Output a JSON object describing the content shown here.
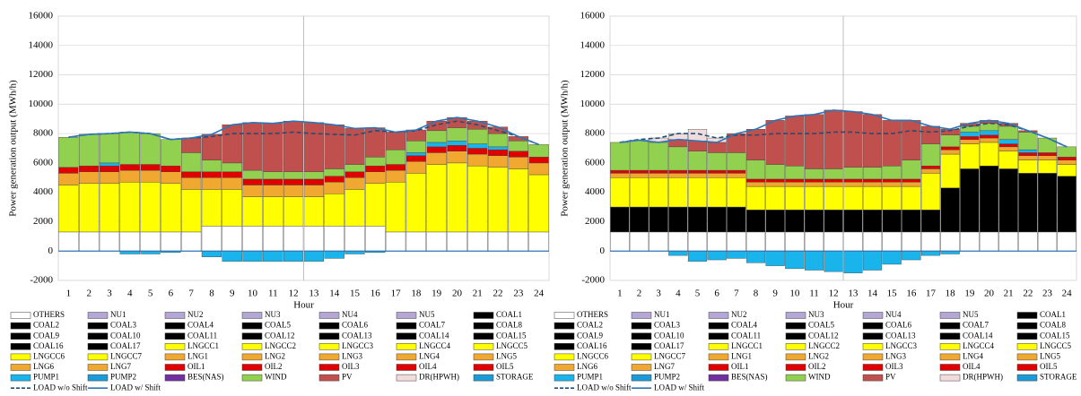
{
  "chart_data": [
    {
      "type": "bar",
      "ylabel": "Power generation output (MWh/h)",
      "xlabel": "Hour",
      "categories": [
        1,
        2,
        3,
        4,
        5,
        6,
        7,
        8,
        9,
        10,
        11,
        12,
        13,
        14,
        15,
        16,
        17,
        18,
        19,
        20,
        21,
        22,
        23,
        24
      ],
      "ylim": [
        -2000,
        16000
      ],
      "yticks": [
        -2000,
        0,
        2000,
        4000,
        6000,
        8000,
        10000,
        12000,
        14000,
        16000
      ],
      "series": [
        {
          "name": "OTHERS",
          "values": [
            1300,
            1300,
            1300,
            1300,
            1300,
            1300,
            1300,
            1700,
            1700,
            1700,
            1700,
            1700,
            1700,
            1700,
            1700,
            1700,
            1300,
            1300,
            1300,
            1300,
            1300,
            1300,
            1300,
            1300
          ]
        },
        {
          "name": "LNGCC1",
          "values": [
            3200,
            3300,
            3300,
            3400,
            3400,
            3300,
            2900,
            2500,
            2500,
            2000,
            2000,
            2000,
            2000,
            2200,
            2500,
            2900,
            3400,
            4000,
            4600,
            4700,
            4500,
            4400,
            4300,
            3900
          ]
        },
        {
          "name": "LNG1",
          "values": [
            800,
            800,
            800,
            800,
            800,
            800,
            800,
            800,
            800,
            800,
            800,
            800,
            800,
            800,
            800,
            800,
            800,
            800,
            800,
            800,
            800,
            800,
            800,
            800
          ]
        },
        {
          "name": "OIL1",
          "values": [
            400,
            400,
            400,
            400,
            400,
            400,
            400,
            400,
            400,
            400,
            400,
            400,
            400,
            400,
            400,
            400,
            400,
            400,
            400,
            400,
            400,
            400,
            400,
            400
          ]
        },
        {
          "name": "PUMP1",
          "values": [
            0,
            0,
            200,
            -200,
            -200,
            -100,
            0,
            -400,
            -700,
            -700,
            -700,
            -700,
            -700,
            -500,
            -200,
            -100,
            0,
            200,
            300,
            300,
            300,
            200,
            0,
            0
          ]
        },
        {
          "name": "WIND",
          "values": [
            2050,
            2150,
            2000,
            2200,
            2100,
            1800,
            1300,
            800,
            600,
            600,
            500,
            500,
            500,
            500,
            500,
            600,
            1000,
            800,
            800,
            900,
            1000,
            900,
            700,
            850
          ]
        },
        {
          "name": "PV",
          "values": [
            0,
            0,
            0,
            0,
            0,
            0,
            1000,
            1750,
            2600,
            3250,
            3300,
            3450,
            3350,
            3000,
            2450,
            2000,
            1200,
            750,
            650,
            700,
            550,
            450,
            300,
            0
          ]
        }
      ],
      "lines": [
        {
          "name": "LOAD w/o Shift",
          "values": [
            7750,
            7950,
            8000,
            8100,
            8000,
            7600,
            7700,
            7800,
            8000,
            8000,
            8000,
            8100,
            8000,
            7950,
            7900,
            8200,
            8100,
            8200,
            8600,
            8850,
            8600,
            8200,
            7800,
            7250
          ]
        },
        {
          "name": "LOAD w/ Shift",
          "values": [
            7750,
            7950,
            8000,
            8100,
            8000,
            7600,
            7700,
            7950,
            8600,
            8750,
            8700,
            8850,
            8750,
            8600,
            8350,
            8400,
            8100,
            8250,
            8850,
            9100,
            8850,
            8450,
            7800,
            7250
          ]
        }
      ],
      "legend": [
        {
          "name": "OTHERS",
          "color": "#ffffff"
        },
        {
          "name": "NU1",
          "color": "#b4a7d6"
        },
        {
          "name": "NU2",
          "color": "#b4a7d6"
        },
        {
          "name": "NU3",
          "color": "#b4a7d6"
        },
        {
          "name": "NU4",
          "color": "#b4a7d6"
        },
        {
          "name": "NU5",
          "color": "#b4a7d6"
        },
        {
          "name": "COAL1",
          "color": "#000000"
        },
        {
          "name": "COAL2",
          "color": "#000000"
        },
        {
          "name": "COAL3",
          "color": "#000000"
        },
        {
          "name": "COAL4",
          "color": "#000000"
        },
        {
          "name": "COAL5",
          "color": "#000000"
        },
        {
          "name": "COAL6",
          "color": "#000000"
        },
        {
          "name": "COAL7",
          "color": "#000000"
        },
        {
          "name": "COAL8",
          "color": "#000000"
        },
        {
          "name": "COAL9",
          "color": "#000000"
        },
        {
          "name": "COAL10",
          "color": "#000000"
        },
        {
          "name": "COAL11",
          "color": "#000000"
        },
        {
          "name": "COAL12",
          "color": "#000000"
        },
        {
          "name": "COAL13",
          "color": "#000000"
        },
        {
          "name": "COAL14",
          "color": "#000000"
        },
        {
          "name": "COAL15",
          "color": "#000000"
        },
        {
          "name": "COAL16",
          "color": "#000000"
        },
        {
          "name": "COAL17",
          "color": "#000000"
        },
        {
          "name": "LNGCC1",
          "color": "#ffff00"
        },
        {
          "name": "LNGCC2",
          "color": "#ffff00"
        },
        {
          "name": "LNGCC3",
          "color": "#ffff00"
        },
        {
          "name": "LNGCC4",
          "color": "#ffff00"
        },
        {
          "name": "LNGCC5",
          "color": "#ffff00"
        },
        {
          "name": "LNGCC6",
          "color": "#ffff00"
        },
        {
          "name": "LNGCC7",
          "color": "#ffff00"
        },
        {
          "name": "LNG1",
          "color": "#f0a830"
        },
        {
          "name": "LNG2",
          "color": "#f0a830"
        },
        {
          "name": "LNG3",
          "color": "#f0a830"
        },
        {
          "name": "LNG4",
          "color": "#f0a830"
        },
        {
          "name": "LNG5",
          "color": "#f0a830"
        },
        {
          "name": "LNG6",
          "color": "#f0a830"
        },
        {
          "name": "LNG7",
          "color": "#f0a830"
        },
        {
          "name": "OIL1",
          "color": "#e00000"
        },
        {
          "name": "OIL2",
          "color": "#e00000"
        },
        {
          "name": "OIL3",
          "color": "#e00000"
        },
        {
          "name": "OIL4",
          "color": "#e00000"
        },
        {
          "name": "OIL5",
          "color": "#e00000"
        },
        {
          "name": "PUMP1",
          "color": "#19b4ec"
        },
        {
          "name": "PUMP2",
          "color": "#1a9ad6"
        },
        {
          "name": "BES(NAS)",
          "color": "#7030a0"
        },
        {
          "name": "WIND",
          "color": "#92d050"
        },
        {
          "name": "PV",
          "color": "#c0504d"
        },
        {
          "name": "DR(HPWH)",
          "color": "#f2dcdb"
        },
        {
          "name": "STORAGE",
          "color": "#1a9ad6"
        },
        {
          "name": "LOAD w/o Shift",
          "color": "#1f4e79",
          "style": "dash"
        },
        {
          "name": "LOAD w/ Shift",
          "color": "#2e75b6",
          "style": "line"
        }
      ]
    },
    {
      "type": "bar",
      "ylabel": "Power generation output (MWh/h)",
      "xlabel": "Hour",
      "categories": [
        1,
        2,
        3,
        4,
        5,
        6,
        7,
        8,
        9,
        10,
        11,
        12,
        13,
        14,
        15,
        16,
        17,
        18,
        19,
        20,
        21,
        22,
        23,
        24
      ],
      "ylim": [
        -2000,
        16000
      ],
      "yticks": [
        -2000,
        0,
        2000,
        4000,
        6000,
        8000,
        10000,
        12000,
        14000,
        16000
      ],
      "series": [
        {
          "name": "OTHERS",
          "values": [
            1300,
            1300,
            1300,
            1300,
            1300,
            1300,
            1300,
            1300,
            1300,
            1300,
            1300,
            1300,
            1300,
            1300,
            1300,
            1300,
            1300,
            1300,
            1300,
            1300,
            1300,
            1300,
            1300,
            1300
          ]
        },
        {
          "name": "COAL1",
          "values": [
            1700,
            1700,
            1700,
            1700,
            1700,
            1700,
            1700,
            1500,
            1500,
            1500,
            1500,
            1500,
            1500,
            1500,
            1500,
            1500,
            1500,
            3000,
            4300,
            4500,
            4300,
            4000,
            4000,
            3800
          ]
        },
        {
          "name": "LNGCC1",
          "values": [
            2000,
            2000,
            2000,
            2000,
            2000,
            2000,
            2000,
            1600,
            1600,
            1600,
            1600,
            1600,
            1600,
            1600,
            1600,
            1600,
            2500,
            2300,
            1700,
            1600,
            1200,
            900,
            900,
            800
          ]
        },
        {
          "name": "LNG1",
          "values": [
            300,
            300,
            300,
            300,
            300,
            300,
            300,
            300,
            300,
            300,
            300,
            300,
            300,
            300,
            300,
            300,
            300,
            300,
            300,
            300,
            300,
            300,
            300,
            300
          ]
        },
        {
          "name": "OIL1",
          "values": [
            200,
            200,
            200,
            200,
            200,
            200,
            200,
            200,
            200,
            200,
            200,
            200,
            200,
            200,
            200,
            200,
            200,
            200,
            200,
            200,
            200,
            200,
            200,
            200
          ]
        },
        {
          "name": "PUMP1",
          "values": [
            0,
            0,
            0,
            -300,
            -700,
            -600,
            -500,
            -800,
            -1000,
            -1200,
            -1300,
            -1400,
            -1500,
            -1300,
            -900,
            -600,
            -300,
            -200,
            300,
            300,
            300,
            200,
            0,
            0
          ]
        },
        {
          "name": "WIND",
          "values": [
            1900,
            2050,
            1900,
            1600,
            1300,
            1200,
            1200,
            1300,
            1000,
            900,
            700,
            700,
            800,
            800,
            900,
            1300,
            1500,
            800,
            400,
            500,
            900,
            1200,
            1000,
            700
          ]
        },
        {
          "name": "PV",
          "values": [
            0,
            0,
            0,
            500,
            700,
            700,
            1300,
            2100,
            3000,
            3400,
            3700,
            4000,
            3800,
            3600,
            3100,
            2700,
            1200,
            400,
            200,
            200,
            200,
            100,
            0,
            0
          ]
        },
        {
          "name": "DR(HPWH)",
          "values": [
            0,
            0,
            300,
            400,
            800,
            300,
            0,
            0,
            0,
            0,
            0,
            0,
            0,
            0,
            0,
            0,
            0,
            0,
            0,
            0,
            0,
            0,
            0,
            0
          ]
        }
      ],
      "lines": [
        {
          "name": "LOAD w/o Shift",
          "values": [
            7400,
            7600,
            7700,
            8000,
            8000,
            7700,
            7900,
            7900,
            8000,
            8000,
            8000,
            8100,
            8100,
            8000,
            8000,
            8200,
            8100,
            8200,
            8500,
            8700,
            8600,
            8200,
            7700,
            7100
          ]
        },
        {
          "name": "LOAD w/ Shift",
          "values": [
            7400,
            7550,
            7400,
            7600,
            7500,
            7400,
            8000,
            8300,
            8900,
            9200,
            9300,
            9600,
            9500,
            9300,
            8900,
            8900,
            8500,
            8300,
            8700,
            8900,
            8700,
            8200,
            7700,
            7100
          ]
        }
      ],
      "legend": [
        {
          "name": "OTHERS",
          "color": "#ffffff"
        },
        {
          "name": "NU1",
          "color": "#b4a7d6"
        },
        {
          "name": "NU2",
          "color": "#b4a7d6"
        },
        {
          "name": "NU3",
          "color": "#b4a7d6"
        },
        {
          "name": "NU4",
          "color": "#b4a7d6"
        },
        {
          "name": "NU5",
          "color": "#b4a7d6"
        },
        {
          "name": "COAL1",
          "color": "#000000"
        },
        {
          "name": "COAL2",
          "color": "#000000"
        },
        {
          "name": "COAL3",
          "color": "#000000"
        },
        {
          "name": "COAL4",
          "color": "#000000"
        },
        {
          "name": "COAL5",
          "color": "#000000"
        },
        {
          "name": "COAL6",
          "color": "#000000"
        },
        {
          "name": "COAL7",
          "color": "#000000"
        },
        {
          "name": "COAL8",
          "color": "#000000"
        },
        {
          "name": "COAL9",
          "color": "#000000"
        },
        {
          "name": "COAL10",
          "color": "#000000"
        },
        {
          "name": "COAL11",
          "color": "#000000"
        },
        {
          "name": "COAL12",
          "color": "#000000"
        },
        {
          "name": "COAL13",
          "color": "#000000"
        },
        {
          "name": "COAL14",
          "color": "#000000"
        },
        {
          "name": "COAL15",
          "color": "#000000"
        },
        {
          "name": "COAL16",
          "color": "#000000"
        },
        {
          "name": "COAL17",
          "color": "#000000"
        },
        {
          "name": "LNGCC1",
          "color": "#ffff00"
        },
        {
          "name": "LNGCC2",
          "color": "#ffff00"
        },
        {
          "name": "LNGCC3",
          "color": "#ffff00"
        },
        {
          "name": "LNGCC4",
          "color": "#ffff00"
        },
        {
          "name": "LNGCC5",
          "color": "#ffff00"
        },
        {
          "name": "LNGCC6",
          "color": "#ffff00"
        },
        {
          "name": "LNGCC7",
          "color": "#ffff00"
        },
        {
          "name": "LNG1",
          "color": "#f0a830"
        },
        {
          "name": "LNG2",
          "color": "#f0a830"
        },
        {
          "name": "LNG3",
          "color": "#f0a830"
        },
        {
          "name": "LNG4",
          "color": "#f0a830"
        },
        {
          "name": "LNG5",
          "color": "#f0a830"
        },
        {
          "name": "LNG6",
          "color": "#f0a830"
        },
        {
          "name": "LNG7",
          "color": "#f0a830"
        },
        {
          "name": "OIL1",
          "color": "#e00000"
        },
        {
          "name": "OIL2",
          "color": "#e00000"
        },
        {
          "name": "OIL3",
          "color": "#e00000"
        },
        {
          "name": "OIL4",
          "color": "#e00000"
        },
        {
          "name": "OIL5",
          "color": "#e00000"
        },
        {
          "name": "PUMP1",
          "color": "#19b4ec"
        },
        {
          "name": "PUMP2",
          "color": "#1a9ad6"
        },
        {
          "name": "BES(NAS)",
          "color": "#7030a0"
        },
        {
          "name": "WIND",
          "color": "#92d050"
        },
        {
          "name": "PV",
          "color": "#c0504d"
        },
        {
          "name": "DR(HPWH)",
          "color": "#f2dcdb"
        },
        {
          "name": "STORAGE",
          "color": "#1a9ad6"
        },
        {
          "name": "LOAD w/o Shift",
          "color": "#1f4e79",
          "style": "dash"
        },
        {
          "name": "LOAD w/ Shift",
          "color": "#2e75b6",
          "style": "line"
        }
      ]
    }
  ]
}
